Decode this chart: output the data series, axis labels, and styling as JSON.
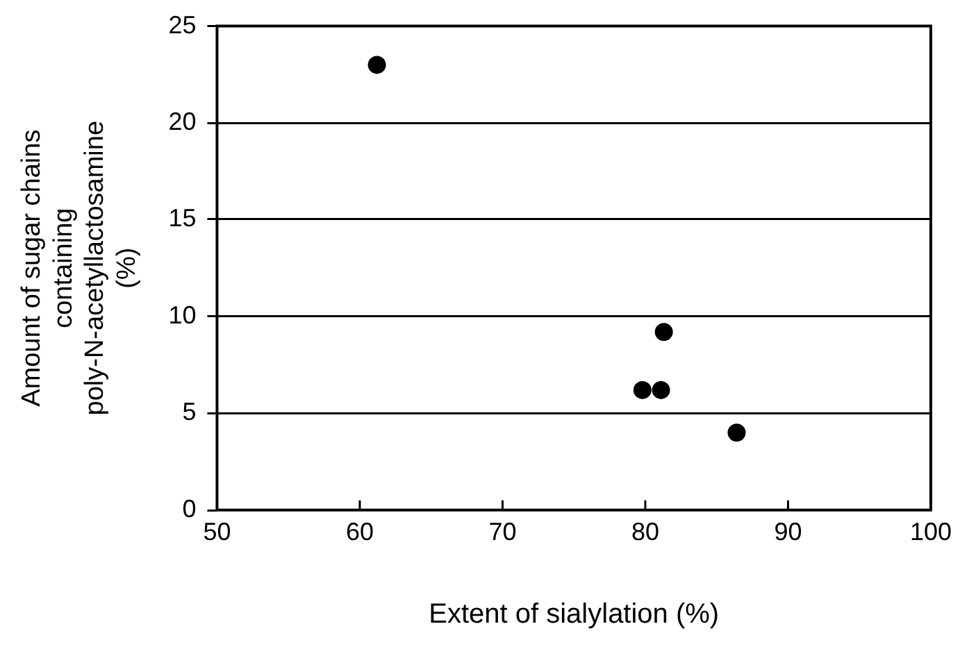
{
  "chart_data": {
    "type": "scatter",
    "xlabel": "Extent of sialylation (%)",
    "ylabel": "Amount of sugar chains containing poly-N-acetyllactosamine (%)",
    "series": [
      {
        "color": "#000000",
        "x": [
          61.2,
          81.3,
          79.8,
          81.1,
          86.4
        ],
        "values": [
          23.0,
          9.2,
          6.2,
          6.2,
          4.0
        ]
      }
    ],
    "xlim": [
      50,
      100
    ],
    "xticks": [
      50,
      60,
      70,
      80,
      90,
      100
    ],
    "ylim": [
      0,
      25
    ],
    "yticks": [
      0,
      5,
      10,
      15,
      20,
      25
    ],
    "grid": "y",
    "marker": "circle",
    "legend": false
  }
}
